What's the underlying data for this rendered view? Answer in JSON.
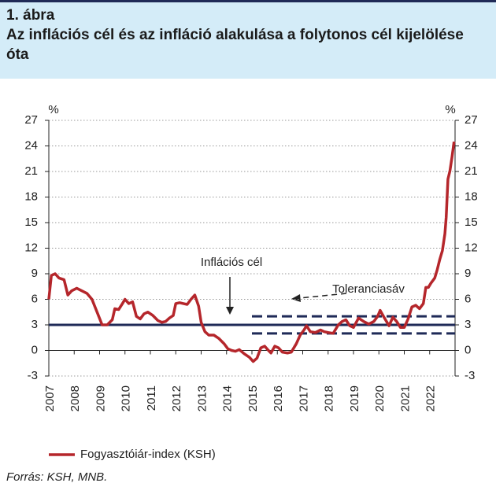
{
  "chart_data": {
    "type": "line",
    "title": "1. ábra",
    "subtitle": "Az inflációs cél és az infláció alakulása a folytonos cél kijelölése óta",
    "ylabel": "%",
    "y2label": "%",
    "source": "Forrás: KSH, MNB.",
    "xlim": [
      2007,
      2023
    ],
    "xticks": [
      2007,
      2008,
      2009,
      2010,
      2011,
      2012,
      2013,
      2014,
      2015,
      2016,
      2017,
      2018,
      2019,
      2020,
      2021,
      2022
    ],
    "ylim": [
      -3,
      27
    ],
    "yticks": [
      -3,
      0,
      3,
      6,
      9,
      12,
      15,
      18,
      21,
      24,
      27
    ],
    "y2lim": [
      -3,
      27
    ],
    "y2ticks": [
      -3,
      0,
      3,
      6,
      9,
      12,
      15,
      18,
      21,
      24,
      27
    ],
    "grid": true,
    "x": [
      2007.0,
      2007.1,
      2007.25,
      2007.4,
      2007.6,
      2007.75,
      2007.9,
      2008.1,
      2008.3,
      2008.5,
      2008.7,
      2008.9,
      2009.1,
      2009.3,
      2009.5,
      2009.6,
      2009.75,
      2009.9,
      2010.0,
      2010.15,
      2010.3,
      2010.45,
      2010.6,
      2010.75,
      2010.9,
      2011.1,
      2011.3,
      2011.45,
      2011.6,
      2011.75,
      2011.9,
      2012.0,
      2012.15,
      2012.3,
      2012.45,
      2012.6,
      2012.75,
      2012.9,
      2013.0,
      2013.15,
      2013.3,
      2013.5,
      2013.7,
      2013.9,
      2014.05,
      2014.2,
      2014.35,
      2014.5,
      2014.7,
      2014.9,
      2015.05,
      2015.2,
      2015.35,
      2015.5,
      2015.65,
      2015.75,
      2015.9,
      2016.05,
      2016.2,
      2016.4,
      2016.55,
      2016.75,
      2016.9,
      2017.05,
      2017.15,
      2017.3,
      2017.5,
      2017.7,
      2017.85,
      2018.0,
      2018.2,
      2018.4,
      2018.55,
      2018.7,
      2018.85,
      2019.0,
      2019.2,
      2019.4,
      2019.6,
      2019.8,
      2019.95,
      2020.05,
      2020.2,
      2020.4,
      2020.55,
      2020.7,
      2020.85,
      2021.0,
      2021.15,
      2021.3,
      2021.45,
      2021.6,
      2021.75,
      2021.85,
      2021.95,
      2022.05,
      2022.2,
      2022.3,
      2022.4,
      2022.5,
      2022.6,
      2022.65,
      2022.72,
      2022.8,
      2022.88,
      2022.96
    ],
    "series": [
      {
        "name": "Fogyasztóiár-index (KSH)",
        "color": "#b5262b",
        "values": [
          6.0,
          8.8,
          9.0,
          8.5,
          8.3,
          6.5,
          7.0,
          7.3,
          7.0,
          6.7,
          6.0,
          4.5,
          3.0,
          3.0,
          3.6,
          4.9,
          4.8,
          5.5,
          6.0,
          5.5,
          5.7,
          4.0,
          3.7,
          4.3,
          4.5,
          4.1,
          3.5,
          3.3,
          3.4,
          3.8,
          4.1,
          5.5,
          5.6,
          5.5,
          5.4,
          6.0,
          6.5,
          5.2,
          3.3,
          2.2,
          1.8,
          1.8,
          1.4,
          0.8,
          0.2,
          0.0,
          -0.1,
          0.1,
          -0.4,
          -0.8,
          -1.3,
          -0.9,
          0.3,
          0.5,
          0.0,
          -0.3,
          0.5,
          0.3,
          -0.2,
          -0.3,
          -0.2,
          0.8,
          1.8,
          2.4,
          2.9,
          2.2,
          2.1,
          2.4,
          2.2,
          2.1,
          2.0,
          3.0,
          3.4,
          3.6,
          2.9,
          2.7,
          3.8,
          3.4,
          3.1,
          3.4,
          4.0,
          4.7,
          3.9,
          2.9,
          3.9,
          3.4,
          2.7,
          2.7,
          3.7,
          5.1,
          5.3,
          4.9,
          5.5,
          7.4,
          7.4,
          7.9,
          8.5,
          9.5,
          10.7,
          11.7,
          13.7,
          15.6,
          20.1,
          21.1,
          22.7,
          24.5
        ]
      }
    ],
    "target": {
      "label": "Inflációs cél",
      "value": 3,
      "color": "#1f2a57"
    },
    "band": {
      "label": "Toleranciasáv",
      "values": [
        2,
        4
      ],
      "from": 2015,
      "color": "#1f2a57"
    }
  }
}
